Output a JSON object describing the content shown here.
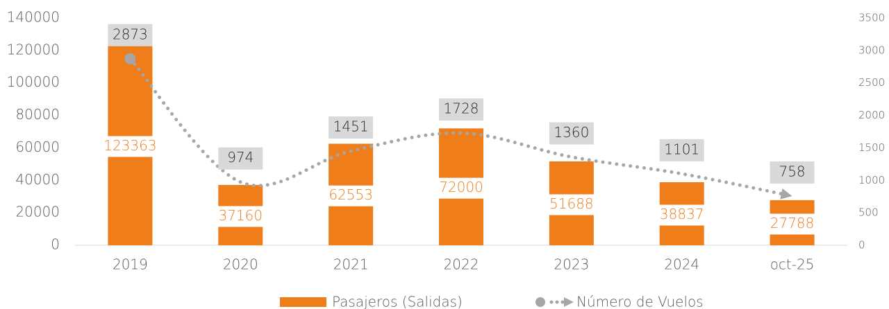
{
  "chart_data": {
    "type": "bar_line",
    "categories": [
      "2019",
      "2020",
      "2021",
      "2022",
      "2023",
      "2024",
      "oct-25"
    ],
    "series": [
      {
        "name": "Pasajeros  (Salidas)",
        "color": "#ee7d1a",
        "type": "bar",
        "values": [
          123363,
          37160,
          62553,
          72000,
          51688,
          38837,
          27788
        ]
      },
      {
        "name": "Número de Vuelos",
        "color": "#a6a6a6",
        "type": "line",
        "axis": "y2",
        "values": [
          2873,
          974,
          1451,
          1728,
          1360,
          1101,
          758
        ]
      }
    ],
    "ylim": [
      0,
      140000
    ],
    "yticks": [
      0,
      20000,
      40000,
      60000,
      80000,
      100000,
      120000,
      140000
    ],
    "y2lim": [
      0,
      3500
    ],
    "y2ticks": [
      0,
      500,
      1000,
      1500,
      2000,
      2500,
      3000,
      3500
    ],
    "legend": "bottom",
    "grid": false
  }
}
